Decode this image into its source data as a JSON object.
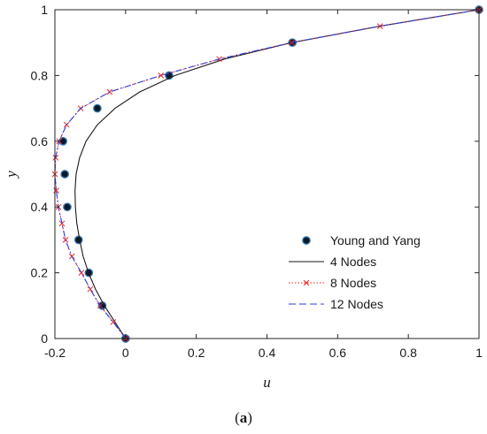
{
  "chart_data": {
    "type": "line",
    "xlabel": "u",
    "ylabel": "y",
    "caption_open": "(",
    "caption_letter": "a",
    "caption_close": ")",
    "xlim": [
      -0.2,
      1
    ],
    "ylim": [
      0,
      1
    ],
    "xticks": [
      -0.2,
      0,
      0.2,
      0.4,
      0.6,
      0.8,
      1
    ],
    "xtick_labels": [
      "-0.2",
      "0",
      "0.2",
      "0.4",
      "0.6",
      "0.8",
      "1"
    ],
    "yticks": [
      0,
      0.2,
      0.4,
      0.6,
      0.8,
      1
    ],
    "ytick_labels": [
      "0",
      "0.2",
      "0.4",
      "0.6",
      "0.8",
      "1"
    ],
    "grid": false,
    "legend_position": "bottom-right",
    "series": [
      {
        "name": "Young and Yang",
        "style": "markers",
        "marker": "filled-circle",
        "color": "#0a1a2a",
        "marker_edge": "#3a7ab0",
        "points": [
          [
            0,
            0
          ],
          [
            -0.066,
            0.1
          ],
          [
            -0.104,
            0.2
          ],
          [
            -0.133,
            0.3
          ],
          [
            -0.165,
            0.4
          ],
          [
            -0.172,
            0.5
          ],
          [
            -0.177,
            0.6
          ],
          [
            -0.08,
            0.7
          ],
          [
            0.123,
            0.8
          ],
          [
            0.472,
            0.9
          ],
          [
            1,
            1
          ]
        ]
      },
      {
        "name": "4 Nodes",
        "style": "solid",
        "color": "#1a1a1a",
        "points": [
          [
            0,
            0
          ],
          [
            -0.03,
            0.05
          ],
          [
            -0.06,
            0.1
          ],
          [
            -0.085,
            0.15
          ],
          [
            -0.105,
            0.2
          ],
          [
            -0.12,
            0.25
          ],
          [
            -0.13,
            0.3
          ],
          [
            -0.138,
            0.35
          ],
          [
            -0.142,
            0.4
          ],
          [
            -0.143,
            0.45
          ],
          [
            -0.14,
            0.5
          ],
          [
            -0.13,
            0.55
          ],
          [
            -0.112,
            0.6
          ],
          [
            -0.08,
            0.65
          ],
          [
            -0.03,
            0.7
          ],
          [
            0.04,
            0.75
          ],
          [
            0.14,
            0.8
          ],
          [
            0.28,
            0.85
          ],
          [
            0.47,
            0.9
          ],
          [
            0.72,
            0.95
          ],
          [
            1,
            1
          ]
        ]
      },
      {
        "name": "8 Nodes",
        "style": "dotted",
        "marker": "x",
        "color": "#e8262a",
        "points": [
          [
            0,
            0
          ],
          [
            -0.035,
            0.05
          ],
          [
            -0.072,
            0.1
          ],
          [
            -0.1,
            0.15
          ],
          [
            -0.125,
            0.2
          ],
          [
            -0.152,
            0.25
          ],
          [
            -0.17,
            0.3
          ],
          [
            -0.18,
            0.35
          ],
          [
            -0.19,
            0.4
          ],
          [
            -0.196,
            0.45
          ],
          [
            -0.2,
            0.5
          ],
          [
            -0.198,
            0.55
          ],
          [
            -0.188,
            0.6
          ],
          [
            -0.167,
            0.65
          ],
          [
            -0.127,
            0.7
          ],
          [
            -0.045,
            0.75
          ],
          [
            0.1,
            0.8
          ],
          [
            0.265,
            0.85
          ],
          [
            0.47,
            0.9
          ],
          [
            0.72,
            0.95
          ],
          [
            1,
            1
          ]
        ]
      },
      {
        "name": "12 Nodes",
        "style": "dash-dot",
        "color": "#2b3fe0",
        "points": [
          [
            0,
            0
          ],
          [
            -0.035,
            0.05
          ],
          [
            -0.072,
            0.1
          ],
          [
            -0.1,
            0.15
          ],
          [
            -0.125,
            0.2
          ],
          [
            -0.152,
            0.25
          ],
          [
            -0.17,
            0.3
          ],
          [
            -0.18,
            0.35
          ],
          [
            -0.19,
            0.4
          ],
          [
            -0.196,
            0.45
          ],
          [
            -0.2,
            0.5
          ],
          [
            -0.198,
            0.55
          ],
          [
            -0.188,
            0.6
          ],
          [
            -0.167,
            0.65
          ],
          [
            -0.127,
            0.7
          ],
          [
            -0.045,
            0.75
          ],
          [
            0.1,
            0.8
          ],
          [
            0.265,
            0.85
          ],
          [
            0.47,
            0.9
          ],
          [
            0.72,
            0.95
          ],
          [
            1,
            1
          ]
        ]
      }
    ]
  }
}
